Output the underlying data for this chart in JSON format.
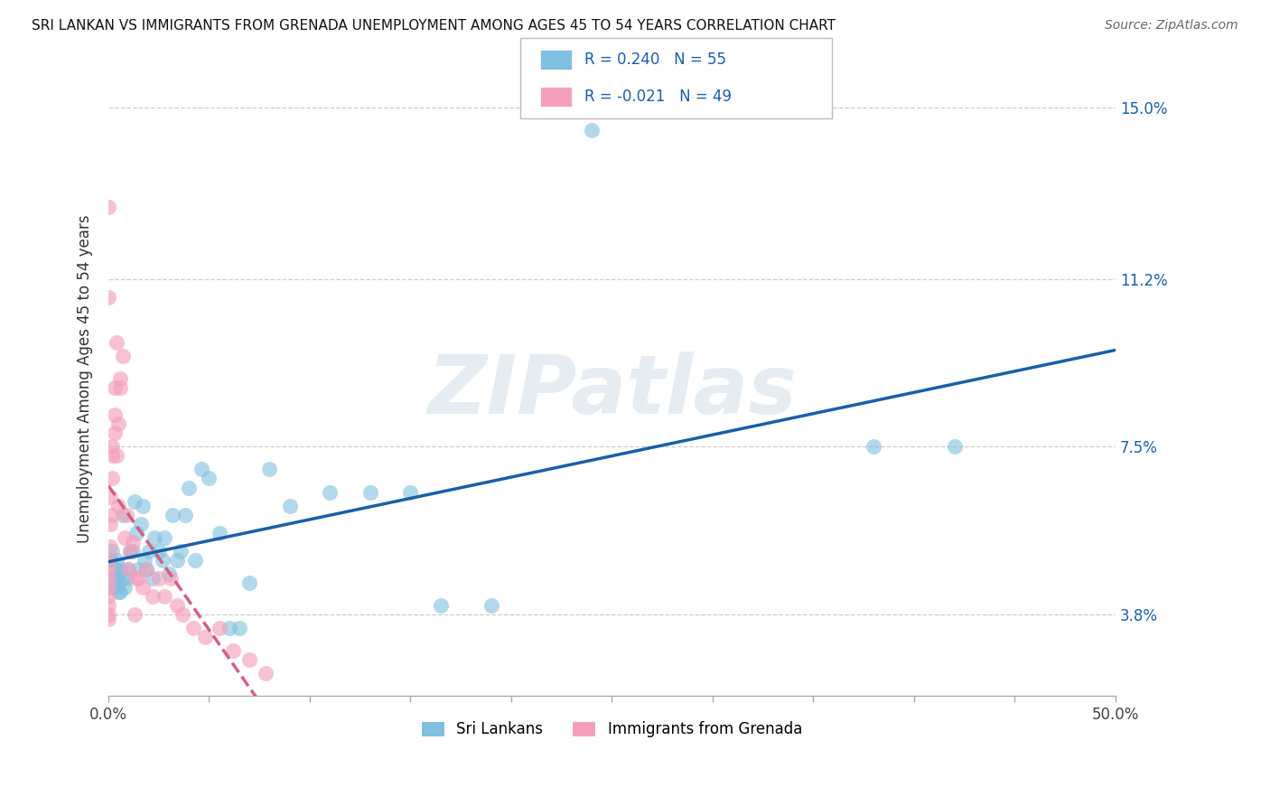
{
  "title": "SRI LANKAN VS IMMIGRANTS FROM GRENADA UNEMPLOYMENT AMONG AGES 45 TO 54 YEARS CORRELATION CHART",
  "source": "Source: ZipAtlas.com",
  "ylabel_label": "Unemployment Among Ages 45 to 54 years",
  "blue_color": "#7fbfdf",
  "pink_color": "#f4a0bb",
  "line_blue": "#1a5fa8",
  "line_pink": "#d46080",
  "watermark": "ZIPatlas",
  "xmin": 0.0,
  "xmax": 0.5,
  "ymin": 0.02,
  "ymax": 0.16,
  "yticks": [
    0.038,
    0.075,
    0.112,
    0.15
  ],
  "ytick_labels": [
    "3.8%",
    "7.5%",
    "11.2%",
    "15.0%"
  ],
  "legend_r_blue": "0.240",
  "legend_n_blue": "55",
  "legend_r_pink": "-0.021",
  "legend_n_pink": "49",
  "sl_x": [
    0.001,
    0.001,
    0.002,
    0.002,
    0.003,
    0.003,
    0.004,
    0.004,
    0.005,
    0.005,
    0.006,
    0.006,
    0.007,
    0.007,
    0.008,
    0.009,
    0.01,
    0.011,
    0.012,
    0.013,
    0.014,
    0.015,
    0.016,
    0.017,
    0.018,
    0.019,
    0.02,
    0.022,
    0.023,
    0.025,
    0.027,
    0.028,
    0.03,
    0.032,
    0.034,
    0.036,
    0.038,
    0.04,
    0.043,
    0.046,
    0.05,
    0.055,
    0.06,
    0.065,
    0.07,
    0.08,
    0.09,
    0.11,
    0.13,
    0.15,
    0.165,
    0.19,
    0.24,
    0.38,
    0.42
  ],
  "sl_y": [
    0.044,
    0.05,
    0.046,
    0.052,
    0.044,
    0.048,
    0.046,
    0.05,
    0.043,
    0.047,
    0.043,
    0.048,
    0.046,
    0.06,
    0.044,
    0.046,
    0.048,
    0.052,
    0.052,
    0.063,
    0.056,
    0.048,
    0.058,
    0.062,
    0.05,
    0.048,
    0.052,
    0.046,
    0.055,
    0.052,
    0.05,
    0.055,
    0.047,
    0.06,
    0.05,
    0.052,
    0.06,
    0.066,
    0.05,
    0.07,
    0.068,
    0.056,
    0.035,
    0.035,
    0.045,
    0.07,
    0.062,
    0.065,
    0.065,
    0.065,
    0.04,
    0.04,
    0.145,
    0.075,
    0.075
  ],
  "gr_x": [
    0.0,
    0.0,
    0.0,
    0.0,
    0.0,
    0.0,
    0.0,
    0.0,
    0.0,
    0.001,
    0.001,
    0.001,
    0.002,
    0.002,
    0.002,
    0.002,
    0.003,
    0.003,
    0.003,
    0.004,
    0.004,
    0.005,
    0.005,
    0.006,
    0.006,
    0.007,
    0.008,
    0.009,
    0.01,
    0.011,
    0.012,
    0.013,
    0.014,
    0.015,
    0.017,
    0.019,
    0.022,
    0.025,
    0.028,
    0.031,
    0.034,
    0.037,
    0.042,
    0.048,
    0.055,
    0.062,
    0.07,
    0.078,
    0.0
  ],
  "gr_y": [
    0.046,
    0.05,
    0.042,
    0.044,
    0.048,
    0.04,
    0.038,
    0.037,
    0.128,
    0.053,
    0.058,
    0.064,
    0.06,
    0.068,
    0.075,
    0.073,
    0.082,
    0.078,
    0.088,
    0.073,
    0.098,
    0.08,
    0.062,
    0.09,
    0.088,
    0.095,
    0.055,
    0.06,
    0.048,
    0.052,
    0.054,
    0.038,
    0.046,
    0.046,
    0.044,
    0.048,
    0.042,
    0.046,
    0.042,
    0.046,
    0.04,
    0.038,
    0.035,
    0.033,
    0.035,
    0.03,
    0.028,
    0.025,
    0.108
  ]
}
